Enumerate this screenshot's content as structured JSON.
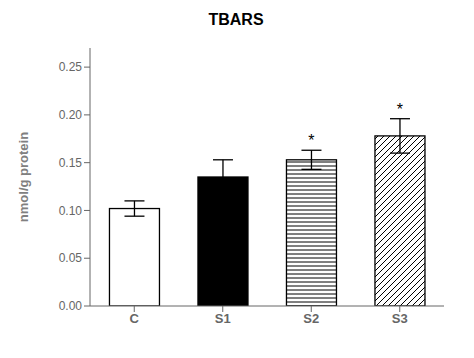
{
  "chart_data": {
    "type": "bar",
    "title": "TBARS",
    "ylabel": "nmol/g protein",
    "categories": [
      "C",
      "S1",
      "S2",
      "S3"
    ],
    "values": [
      0.102,
      0.135,
      0.153,
      0.178
    ],
    "errors": [
      0.008,
      0.018,
      0.01,
      0.018
    ],
    "colors": [
      "white",
      "black",
      "white",
      "white"
    ],
    "ylim": [
      0.0,
      0.27
    ],
    "yticks": [
      {
        "value": 0.0,
        "label": "0.00"
      },
      0.05,
      {
        "value": 0.1,
        "label": "0.10"
      },
      0.15,
      {
        "value": 0.2,
        "label": "0.20"
      },
      0.25
    ],
    "annotations": [
      {
        "category": "S2",
        "text": "*"
      },
      {
        "category": "S3",
        "text": "*"
      }
    ],
    "grid": false
  }
}
